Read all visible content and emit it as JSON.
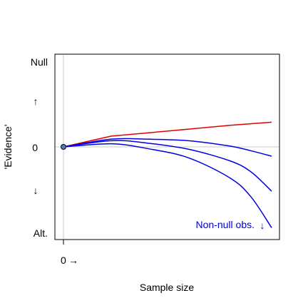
{
  "chart_data": {
    "type": "line",
    "title": "",
    "xlabel": "Sample size",
    "ylabel": "'Evidence'",
    "xlim": [
      0,
      100
    ],
    "ylim": [
      -110,
      110
    ],
    "x_tick_label": "0",
    "x_arrow": "→",
    "y_labels": {
      "top": "Null",
      "zero": "0",
      "bottom": "Alt.",
      "up_arrow": "↑",
      "down_arrow": "↓"
    },
    "reference_lines": {
      "x": 0,
      "y": 0
    },
    "origin_marker": {
      "x": 0,
      "y": 0
    },
    "series": [
      {
        "color": "#e00000",
        "x": [
          0,
          23,
          40,
          60,
          80,
          100
        ],
        "y": [
          0,
          14,
          18,
          23,
          28,
          32
        ]
      },
      {
        "color": "#0000e0",
        "x": [
          0,
          23,
          40,
          60,
          80,
          90,
          100
        ],
        "y": [
          0,
          10,
          10,
          8,
          1,
          -5,
          -12
        ]
      },
      {
        "color": "#0000e0",
        "x": [
          0,
          23,
          40,
          60,
          80,
          90,
          100
        ],
        "y": [
          0,
          8,
          5,
          -3,
          -18,
          -32,
          -57
        ]
      },
      {
        "color": "#0000e0",
        "x": [
          0,
          23,
          40,
          60,
          80,
          90,
          100
        ],
        "y": [
          0,
          4,
          -2,
          -14,
          -40,
          -64,
          -104
        ]
      }
    ],
    "annotation": {
      "text": "Non-null obs.",
      "arrow": "↓",
      "color": "#0000e0",
      "placement": "bottom-right"
    }
  }
}
